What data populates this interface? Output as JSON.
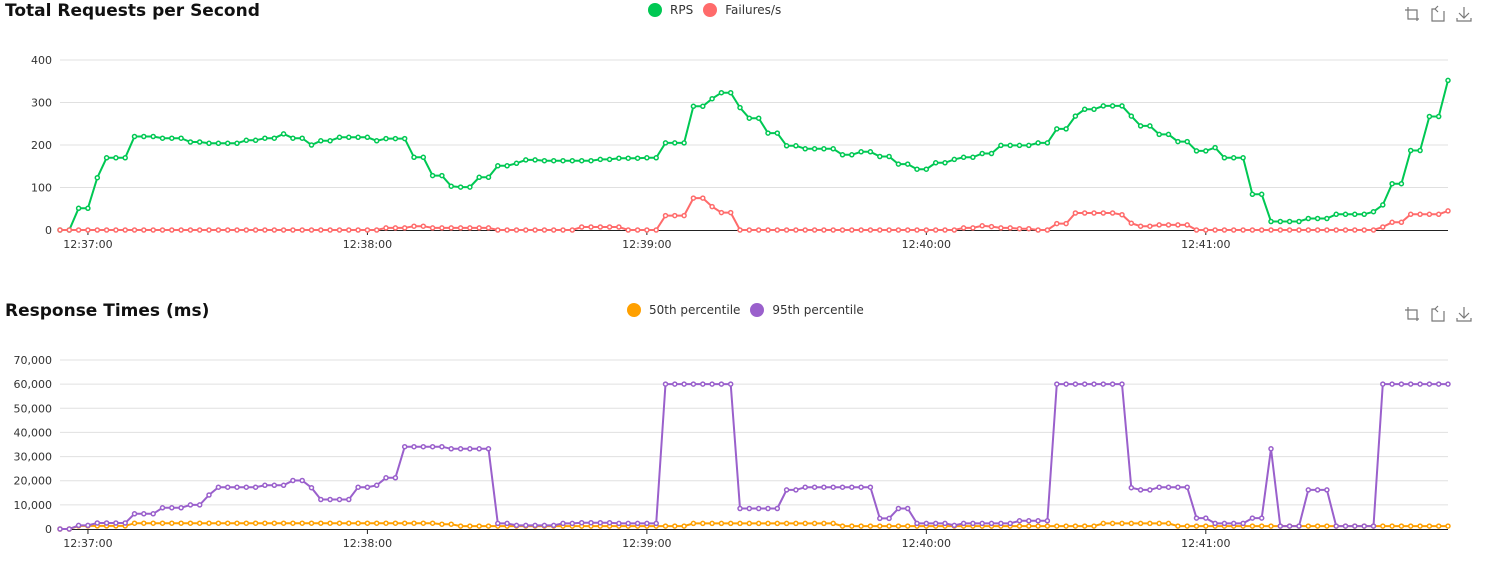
{
  "colors": {
    "rps": "#00c853",
    "failures": "#ff6b6b",
    "p50": "#ffa000",
    "p95": "#9a60cc"
  },
  "toolbox": {
    "icons": [
      "zoom-icon",
      "restore-icon",
      "download-icon"
    ]
  },
  "chart_data": [
    {
      "type": "line",
      "title": "Total Requests per Second",
      "ylim": [
        0,
        400
      ],
      "y_ticks": [
        0,
        100,
        200,
        300,
        400
      ],
      "y_tick_labels": [
        "0",
        "100",
        "200",
        "300",
        "400"
      ],
      "x_ticks": [
        "12:37:00",
        "12:38:00",
        "12:39:00",
        "12:40:00",
        "12:41:00"
      ],
      "grid": true,
      "legend_position": "top-center",
      "x": [
        "12:36:54",
        "12:36:56",
        "12:36:58",
        "12:37:00",
        "12:37:02",
        "12:37:04",
        "12:37:06",
        "12:37:08",
        "12:37:10",
        "12:37:12",
        "12:37:14",
        "12:37:16",
        "12:37:18",
        "12:37:20",
        "12:37:22",
        "12:37:24",
        "12:37:26",
        "12:37:28",
        "12:37:30",
        "12:37:32",
        "12:37:34",
        "12:37:36",
        "12:37:38",
        "12:37:40",
        "12:37:42",
        "12:37:44",
        "12:37:46",
        "12:37:48",
        "12:37:50",
        "12:37:52",
        "12:37:54",
        "12:37:56",
        "12:37:58",
        "12:38:00",
        "12:38:02",
        "12:38:04",
        "12:38:06",
        "12:38:08",
        "12:38:10",
        "12:38:12",
        "12:38:14",
        "12:38:16",
        "12:38:18",
        "12:38:20",
        "12:38:22",
        "12:38:24",
        "12:38:26",
        "12:38:28",
        "12:38:30",
        "12:38:32",
        "12:38:34",
        "12:38:36",
        "12:38:38",
        "12:38:40",
        "12:38:42",
        "12:38:44",
        "12:38:46",
        "12:38:48",
        "12:38:50",
        "12:38:52",
        "12:38:54",
        "12:38:56",
        "12:38:58",
        "12:39:00",
        "12:39:02",
        "12:39:04",
        "12:39:06",
        "12:39:08",
        "12:39:10",
        "12:39:12",
        "12:39:14",
        "12:39:16",
        "12:39:18",
        "12:39:20",
        "12:39:22",
        "12:39:24",
        "12:39:26",
        "12:39:28",
        "12:39:30",
        "12:39:32",
        "12:39:34",
        "12:39:36",
        "12:39:38",
        "12:39:40",
        "12:39:42",
        "12:39:44",
        "12:39:46",
        "12:39:48",
        "12:39:50",
        "12:39:52",
        "12:39:54",
        "12:39:56",
        "12:39:58",
        "12:40:00",
        "12:40:02",
        "12:40:04",
        "12:40:06",
        "12:40:08",
        "12:40:10",
        "12:40:12",
        "12:40:14",
        "12:40:16",
        "12:40:18",
        "12:40:20",
        "12:40:22",
        "12:40:24",
        "12:40:26",
        "12:40:28",
        "12:40:30",
        "12:40:32",
        "12:40:34",
        "12:40:36",
        "12:40:38",
        "12:40:40",
        "12:40:42",
        "12:40:44",
        "12:40:46",
        "12:40:48",
        "12:40:50",
        "12:40:52",
        "12:40:54",
        "12:40:56",
        "12:40:58",
        "12:41:00",
        "12:41:02",
        "12:41:04",
        "12:41:06",
        "12:41:08",
        "12:41:10",
        "12:41:12",
        "12:41:14",
        "12:41:16",
        "12:41:18",
        "12:41:20",
        "12:41:22",
        "12:41:24",
        "12:41:26",
        "12:41:28",
        "12:41:30",
        "12:41:32",
        "12:41:34",
        "12:41:36",
        "12:41:38",
        "12:41:40",
        "12:41:42",
        "12:41:44",
        "12:41:46",
        "12:41:48",
        "12:41:50",
        "12:41:52"
      ],
      "series": [
        {
          "name": "RPS",
          "color_key": "rps",
          "values": [
            0,
            0,
            51,
            51,
            123,
            170,
            170,
            170,
            220,
            220,
            220,
            216,
            216,
            216,
            207,
            207,
            204,
            204,
            204,
            204,
            211,
            211,
            216,
            216,
            226,
            216,
            216,
            200,
            210,
            210,
            218,
            218,
            218,
            218,
            210,
            215,
            215,
            215,
            171,
            171,
            128,
            128,
            103,
            101,
            101,
            124,
            124,
            151,
            151,
            157,
            165,
            165,
            163,
            163,
            163,
            163,
            163,
            163,
            166,
            166,
            169,
            169,
            169,
            170,
            170,
            205,
            205,
            205,
            291,
            291,
            309,
            323,
            323,
            288,
            263,
            263,
            228,
            228,
            198,
            198,
            191,
            191,
            191,
            191,
            177,
            177,
            184,
            184,
            173,
            173,
            155,
            155,
            143,
            143,
            158,
            158,
            166,
            171,
            171,
            180,
            180,
            199,
            199,
            199,
            199,
            205,
            205,
            238,
            238,
            268,
            284,
            284,
            292,
            292,
            292,
            268,
            245,
            245,
            225,
            225,
            208,
            208,
            186,
            186,
            194,
            170,
            170,
            170,
            84,
            84,
            20,
            20,
            20,
            20,
            27,
            27,
            27,
            37,
            37,
            37,
            37,
            43,
            59,
            109,
            109,
            187,
            187,
            267,
            267,
            352
          ]
        },
        {
          "name": "Failures/s",
          "color_key": "failures",
          "values": [
            0,
            0,
            0,
            0,
            0,
            0,
            0,
            0,
            0,
            0,
            0,
            0,
            0,
            0,
            0,
            0,
            0,
            0,
            0,
            0,
            0,
            0,
            0,
            0,
            0,
            0,
            0,
            0,
            0,
            0,
            0,
            0,
            0,
            0,
            0,
            5,
            5,
            5,
            9,
            9,
            5,
            5,
            5,
            5,
            5,
            5,
            5,
            0,
            0,
            0,
            0,
            0,
            0,
            0,
            0,
            0,
            7,
            7,
            7,
            7,
            7,
            0,
            0,
            0,
            0,
            34,
            34,
            34,
            75,
            75,
            55,
            41,
            41,
            0,
            0,
            0,
            0,
            0,
            0,
            0,
            0,
            0,
            0,
            0,
            0,
            0,
            0,
            0,
            0,
            0,
            0,
            0,
            0,
            0,
            0,
            0,
            0,
            5,
            5,
            10,
            8,
            5,
            5,
            3,
            3,
            0,
            0,
            15,
            15,
            40,
            40,
            40,
            40,
            40,
            36,
            16,
            9,
            9,
            12,
            12,
            12,
            12,
            0,
            0,
            0,
            0,
            0,
            0,
            0,
            0,
            0,
            0,
            0,
            0,
            0,
            0,
            0,
            0,
            0,
            0,
            0,
            0,
            7,
            18,
            18,
            37,
            37,
            37,
            37,
            45
          ]
        }
      ]
    },
    {
      "type": "line",
      "title": "Response Times (ms)",
      "ylim": [
        0,
        70000
      ],
      "y_ticks": [
        0,
        10000,
        20000,
        30000,
        40000,
        50000,
        60000,
        70000
      ],
      "y_tick_labels": [
        "0",
        "10,000",
        "20,000",
        "30,000",
        "40,000",
        "50,000",
        "60,000",
        "70,000"
      ],
      "x_ticks": [
        "12:37:00",
        "12:38:00",
        "12:39:00",
        "12:40:00",
        "12:41:00"
      ],
      "grid": true,
      "legend_position": "top-center",
      "x": [
        "12:36:54",
        "12:36:56",
        "12:36:58",
        "12:37:00",
        "12:37:02",
        "12:37:04",
        "12:37:06",
        "12:37:08",
        "12:37:10",
        "12:37:12",
        "12:37:14",
        "12:37:16",
        "12:37:18",
        "12:37:20",
        "12:37:22",
        "12:37:24",
        "12:37:26",
        "12:37:28",
        "12:37:30",
        "12:37:32",
        "12:37:34",
        "12:37:36",
        "12:37:38",
        "12:37:40",
        "12:37:42",
        "12:37:44",
        "12:37:46",
        "12:37:48",
        "12:37:50",
        "12:37:52",
        "12:37:54",
        "12:37:56",
        "12:37:58",
        "12:38:00",
        "12:38:02",
        "12:38:04",
        "12:38:06",
        "12:38:08",
        "12:38:10",
        "12:38:12",
        "12:38:14",
        "12:38:16",
        "12:38:18",
        "12:38:20",
        "12:38:22",
        "12:38:24",
        "12:38:26",
        "12:38:28",
        "12:38:30",
        "12:38:32",
        "12:38:34",
        "12:38:36",
        "12:38:38",
        "12:38:40",
        "12:38:42",
        "12:38:44",
        "12:38:46",
        "12:38:48",
        "12:38:50",
        "12:38:52",
        "12:38:54",
        "12:38:56",
        "12:38:58",
        "12:39:00",
        "12:39:02",
        "12:39:04",
        "12:39:06",
        "12:39:08",
        "12:39:10",
        "12:39:12",
        "12:39:14",
        "12:39:16",
        "12:39:18",
        "12:39:20",
        "12:39:22",
        "12:39:24",
        "12:39:26",
        "12:39:28",
        "12:39:30",
        "12:39:32",
        "12:39:34",
        "12:39:36",
        "12:39:38",
        "12:39:40",
        "12:39:42",
        "12:39:44",
        "12:39:46",
        "12:39:48",
        "12:39:50",
        "12:39:52",
        "12:39:54",
        "12:39:56",
        "12:39:58",
        "12:40:00",
        "12:40:02",
        "12:40:04",
        "12:40:06",
        "12:40:08",
        "12:40:10",
        "12:40:12",
        "12:40:14",
        "12:40:16",
        "12:40:18",
        "12:40:20",
        "12:40:22",
        "12:40:24",
        "12:40:26",
        "12:40:28",
        "12:40:30",
        "12:40:32",
        "12:40:34",
        "12:40:36",
        "12:40:38",
        "12:40:40",
        "12:40:42",
        "12:40:44",
        "12:40:46",
        "12:40:48",
        "12:40:50",
        "12:40:52",
        "12:40:54",
        "12:40:56",
        "12:40:58",
        "12:41:00",
        "12:41:02",
        "12:41:04",
        "12:41:06",
        "12:41:08",
        "12:41:10",
        "12:41:12",
        "12:41:14",
        "12:41:16",
        "12:41:18",
        "12:41:20",
        "12:41:22",
        "12:41:24",
        "12:41:26",
        "12:41:28",
        "12:41:30",
        "12:41:32",
        "12:41:34",
        "12:41:36",
        "12:41:38",
        "12:41:40",
        "12:41:42",
        "12:41:44",
        "12:41:46",
        "12:41:48",
        "12:41:50",
        "12:41:52"
      ],
      "series": [
        {
          "name": "50th percentile",
          "color_key": "p50",
          "values": [
            0,
            0,
            1300,
            1300,
            1300,
            1300,
            1300,
            1300,
            2400,
            2400,
            2400,
            2400,
            2400,
            2400,
            2400,
            2400,
            2400,
            2400,
            2400,
            2400,
            2400,
            2400,
            2400,
            2400,
            2400,
            2400,
            2400,
            2400,
            2400,
            2400,
            2400,
            2400,
            2400,
            2400,
            2400,
            2400,
            2400,
            2400,
            2400,
            2400,
            2400,
            2000,
            2000,
            1200,
            1200,
            1200,
            1200,
            1200,
            1200,
            1200,
            1200,
            1200,
            1200,
            1200,
            1200,
            1200,
            1200,
            1200,
            1200,
            1200,
            1200,
            1200,
            1200,
            1200,
            1200,
            1200,
            1200,
            1200,
            2300,
            2300,
            2300,
            2300,
            2300,
            2300,
            2300,
            2300,
            2300,
            2300,
            2300,
            2300,
            2300,
            2300,
            2300,
            2300,
            1200,
            1200,
            1200,
            1200,
            1200,
            1200,
            1200,
            1200,
            1200,
            1200,
            1200,
            1200,
            1200,
            1200,
            1200,
            1200,
            1200,
            1200,
            1200,
            1200,
            1200,
            1200,
            1200,
            1200,
            1200,
            1200,
            1200,
            1200,
            2300,
            2300,
            2300,
            2300,
            2300,
            2300,
            2300,
            2300,
            1200,
            1200,
            1200,
            1200,
            1200,
            1200,
            1200,
            1200,
            1200,
            1200,
            1200,
            1200,
            1200,
            1200,
            1200,
            1200,
            1200,
            1200,
            1200,
            1200,
            1200,
            1200,
            1200,
            1200,
            1200,
            1200,
            1200,
            1200,
            1200,
            1200
          ]
        },
        {
          "name": "95th percentile",
          "color_key": "p95",
          "values": [
            0,
            0,
            1500,
            1500,
            2500,
            2500,
            2500,
            2500,
            6300,
            6300,
            6300,
            8800,
            8800,
            8800,
            10000,
            10000,
            14100,
            17300,
            17300,
            17300,
            17300,
            17300,
            18100,
            18100,
            18100,
            20100,
            20100,
            17100,
            12200,
            12200,
            12200,
            12200,
            17300,
            17300,
            18100,
            21200,
            21200,
            34100,
            34100,
            34100,
            34100,
            34100,
            33200,
            33200,
            33200,
            33200,
            33200,
            2300,
            2300,
            1500,
            1500,
            1500,
            1500,
            1500,
            2300,
            2300,
            2600,
            2600,
            2600,
            2600,
            2300,
            2300,
            2300,
            2300,
            2300,
            60000,
            60000,
            60000,
            60000,
            60000,
            60000,
            60000,
            60000,
            8500,
            8500,
            8500,
            8500,
            8500,
            16200,
            16200,
            17300,
            17300,
            17300,
            17300,
            17300,
            17300,
            17300,
            17300,
            4400,
            4400,
            8500,
            8500,
            2300,
            2300,
            2300,
            2300,
            1500,
            2300,
            2300,
            2300,
            2300,
            2300,
            2300,
            3400,
            3400,
            3400,
            3400,
            60000,
            60000,
            60000,
            60000,
            60000,
            60000,
            60000,
            60000,
            17100,
            16200,
            16200,
            17300,
            17300,
            17300,
            17300,
            4500,
            4500,
            2300,
            2300,
            2300,
            2300,
            4500,
            4500,
            33200,
            1200,
            1200,
            1200,
            16200,
            16200,
            16200,
            1200,
            1200,
            1200,
            1200,
            1200,
            60000,
            60000,
            60000,
            60000,
            60000,
            60000,
            60000,
            60000
          ]
        }
      ]
    }
  ]
}
